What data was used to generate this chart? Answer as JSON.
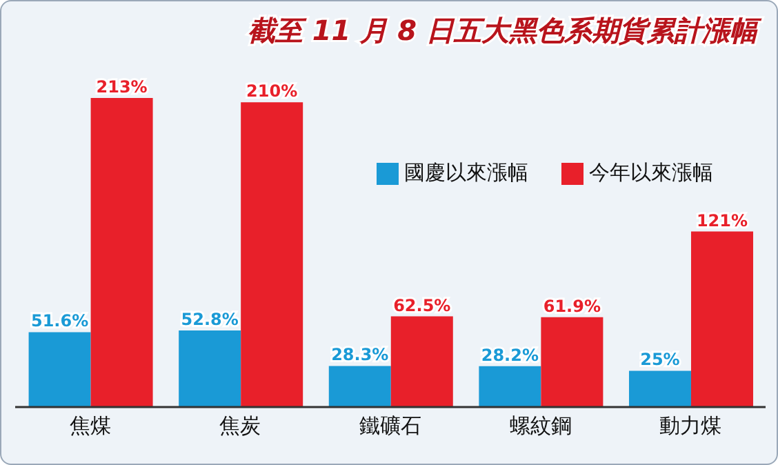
{
  "chart_data": {
    "type": "bar",
    "title": "截至 11 月 8 日五大黑色系期貨累計漲幅",
    "categories": [
      "焦煤",
      "焦炭",
      "鐵礦石",
      "螺紋鋼",
      "動力煤"
    ],
    "series": [
      {
        "name": "國慶以來漲幅",
        "color": "#1a9ad6",
        "values": [
          51.6,
          52.8,
          28.3,
          28.2,
          25
        ],
        "value_labels": [
          "51.6%",
          "52.8%",
          "28.3%",
          "28.2%",
          "25%"
        ]
      },
      {
        "name": "今年以來漲幅",
        "color": "#e8202a",
        "values": [
          213,
          210,
          62.5,
          61.9,
          121
        ],
        "value_labels": [
          "213%",
          "210%",
          "62.5%",
          "61.9%",
          "121%"
        ]
      }
    ],
    "legend": "top right"
  }
}
